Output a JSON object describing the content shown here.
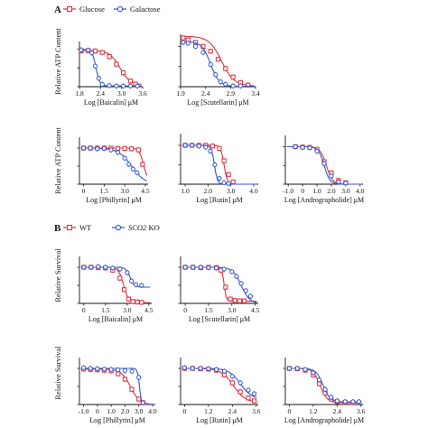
{
  "panels": [
    {
      "label": "A",
      "legend": [
        {
          "name": "Glucose",
          "color": "#e0303c",
          "marker": "square"
        },
        {
          "name": "Galactose",
          "color": "#3355cc",
          "marker": "circle"
        }
      ]
    },
    {
      "label": "B",
      "legend": [
        {
          "name": "WT",
          "color": "#e0303c",
          "marker": "square"
        },
        {
          "name": "SCO2 KO",
          "color": "#3355cc",
          "marker": "circle",
          "italic_part": "SCO2"
        }
      ]
    }
  ],
  "row_ylabels": {
    "A1": "Relative ATP Content",
    "A2": "Relative ATP Content",
    "B1": "Relative Survival",
    "B2": "Relative Survival"
  },
  "chart_data": [
    {
      "id": "A1a",
      "type": "scatter",
      "xlabel": "Log [Baicalin] μM",
      "xlim": [
        1.8,
        3.6
      ],
      "xticks": [
        "1.8",
        "2.4",
        "3.0",
        "3.6"
      ],
      "ylim": [
        0,
        1.2
      ],
      "series": [
        {
          "name": "Glucose",
          "color": "#e0303c",
          "marker": "square",
          "x": [
            1.85,
            2.05,
            2.25,
            2.45,
            2.65,
            2.85,
            3.05,
            3.25,
            3.4
          ],
          "y": [
            0.95,
            0.96,
            0.95,
            0.91,
            0.8,
            0.6,
            0.37,
            0.15,
            0.07
          ],
          "fit": {
            "top": 0.96,
            "bottom": 0.05,
            "ec50": 2.95,
            "hill": 3.0
          }
        },
        {
          "name": "Galactose",
          "color": "#3355cc",
          "marker": "circle",
          "x": [
            1.85,
            2.05,
            2.15,
            2.25,
            2.35,
            2.45,
            2.65,
            2.85,
            3.05,
            3.25,
            3.45
          ],
          "y": [
            0.98,
            0.97,
            0.9,
            0.55,
            0.22,
            0.06,
            0.03,
            0.02,
            0.02,
            0.02,
            0.02
          ],
          "fit": {
            "top": 0.99,
            "bottom": 0.02,
            "ec50": 2.27,
            "hill": 8.0
          }
        }
      ]
    },
    {
      "id": "A1b",
      "type": "scatter",
      "xlabel": "Log [Scutellarin] μM",
      "xlim": [
        1.9,
        3.4
      ],
      "xticks": [
        "1.9",
        "2.4",
        "2.9",
        "3.4"
      ],
      "ylim": [
        0,
        1.3
      ],
      "series": [
        {
          "name": "Glucose",
          "color": "#e0303c",
          "marker": "square",
          "x": [
            1.95,
            2.05,
            2.2,
            2.35,
            2.5,
            2.65,
            2.8,
            2.95,
            3.1,
            3.25
          ],
          "y": [
            1.21,
            1.16,
            1.1,
            1.0,
            0.88,
            0.68,
            0.45,
            0.24,
            0.1,
            0.04
          ],
          "fit": {
            "top": 1.25,
            "bottom": 0.02,
            "ec50": 2.72,
            "hill": 3.5
          }
        },
        {
          "name": "Galactose",
          "color": "#3355cc",
          "marker": "circle",
          "x": [
            1.95,
            2.05,
            2.2,
            2.35,
            2.5,
            2.6,
            2.7,
            2.8,
            2.95,
            3.1
          ],
          "y": [
            1.1,
            1.08,
            1.0,
            0.85,
            0.55,
            0.3,
            0.12,
            0.06,
            0.02,
            0.02
          ],
          "fit": {
            "top": 1.12,
            "bottom": 0.01,
            "ec50": 2.5,
            "hill": 5.0
          }
        }
      ]
    },
    {
      "id": "A2a",
      "type": "scatter",
      "xlabel": "Log [Phillyrin] μM",
      "xlim": [
        -0.3,
        4.7
      ],
      "xticks": [
        "0",
        "1.5",
        "3.0",
        "4.5"
      ],
      "ylim": [
        0,
        1.3
      ],
      "series": [
        {
          "name": "Glucose",
          "color": "#e0303c",
          "marker": "square",
          "x": [
            0.0,
            0.5,
            1.0,
            1.5,
            2.0,
            2.5,
            3.0,
            3.5,
            4.0,
            4.3
          ],
          "y": [
            1.0,
            1.0,
            1.0,
            1.0,
            1.0,
            0.99,
            0.99,
            0.98,
            0.95,
            0.55
          ],
          "fit": {
            "top": 1.0,
            "bottom": 0.0,
            "ec50": 4.4,
            "hill": 2.5
          }
        },
        {
          "name": "Galactose",
          "color": "#3355cc",
          "marker": "circle",
          "x": [
            0.0,
            0.5,
            1.0,
            1.5,
            2.0,
            2.5,
            3.0,
            3.3,
            3.6,
            3.9
          ],
          "y": [
            1.0,
            1.0,
            0.98,
            0.99,
            0.95,
            0.88,
            0.72,
            0.55,
            0.42,
            0.32
          ],
          "fit": {
            "top": 1.0,
            "bottom": 0.0,
            "ec50": 3.5,
            "hill": 0.9
          }
        }
      ]
    },
    {
      "id": "A2b",
      "type": "scatter",
      "xlabel": "Log [Rutin] μM",
      "xlim": [
        0.8,
        4.2
      ],
      "xticks": [
        "1.0",
        "2.0",
        "3.0",
        "4.0"
      ],
      "ylim": [
        0,
        1.3
      ],
      "series": [
        {
          "name": "Glucose",
          "color": "#e0303c",
          "marker": "square",
          "x": [
            1.0,
            1.3,
            1.6,
            1.9,
            2.2,
            2.5,
            2.7,
            2.9,
            3.1
          ],
          "y": [
            1.0,
            1.0,
            1.0,
            1.0,
            0.98,
            0.92,
            0.6,
            0.25,
            0.06
          ],
          "fit": {
            "top": 1.0,
            "bottom": 0.0,
            "ec50": 2.7,
            "hill": 6.0
          }
        },
        {
          "name": "Galactose",
          "color": "#3355cc",
          "marker": "circle",
          "x": [
            1.0,
            1.3,
            1.6,
            1.9,
            2.1,
            2.3,
            2.5,
            2.7,
            2.9
          ],
          "y": [
            1.0,
            1.0,
            0.98,
            0.95,
            0.85,
            0.5,
            0.15,
            0.04,
            0.02
          ],
          "fit": {
            "top": 1.0,
            "bottom": 0.0,
            "ec50": 2.28,
            "hill": 6.5
          }
        }
      ]
    },
    {
      "id": "A2c",
      "type": "scatter",
      "xlabel": "Log [Andrographolide] μM",
      "xlim": [
        -1.2,
        4.2
      ],
      "xticks": [
        "-1.0",
        "0",
        "1.0",
        "2.0",
        "3.0",
        "4.0"
      ],
      "ylim": [
        0,
        1.3
      ],
      "series": [
        {
          "name": "Glucose",
          "color": "#e0303c",
          "marker": "square",
          "x": [
            -0.5,
            0.0,
            0.5,
            1.0,
            1.5,
            2.0,
            2.5,
            3.0
          ],
          "y": [
            1.0,
            0.99,
            0.98,
            0.93,
            0.6,
            0.3,
            0.1,
            0.04
          ],
          "fit": {
            "top": 1.0,
            "bottom": 0.0,
            "ec50": 1.65,
            "hill": 2.0
          }
        },
        {
          "name": "Galactose",
          "color": "#3355cc",
          "marker": "circle",
          "x": [
            -0.5,
            0.0,
            0.5,
            1.0,
            1.5,
            2.0,
            2.5,
            3.0
          ],
          "y": [
            1.0,
            0.98,
            0.97,
            0.88,
            0.55,
            0.22,
            0.06,
            0.03
          ],
          "fit": {
            "top": 1.0,
            "bottom": 0.0,
            "ec50": 1.5,
            "hill": 2.2
          }
        }
      ]
    },
    {
      "id": "B1a",
      "type": "scatter",
      "xlabel": "Log [Baicalin] μM",
      "xlim": [
        -0.3,
        4.7
      ],
      "xticks": [
        "0",
        "1.5",
        "3.0",
        "4.5"
      ],
      "ylim": [
        0,
        1.3
      ],
      "series": [
        {
          "name": "WT",
          "color": "#e0303c",
          "marker": "square",
          "x": [
            0.0,
            0.5,
            1.0,
            1.5,
            2.0,
            2.5,
            2.8,
            3.1,
            3.4,
            3.7,
            4.0
          ],
          "y": [
            1.0,
            1.0,
            0.99,
            0.98,
            0.92,
            0.7,
            0.38,
            0.12,
            0.05,
            0.04,
            0.03
          ],
          "fit": {
            "top": 1.0,
            "bottom": 0.02,
            "ec50": 2.75,
            "hill": 2.5
          }
        },
        {
          "name": "SCO2 KO",
          "color": "#3355cc",
          "marker": "circle",
          "x": [
            0.0,
            0.5,
            1.0,
            1.5,
            2.0,
            2.5,
            3.0,
            3.3,
            3.6,
            4.0
          ],
          "y": [
            1.0,
            1.0,
            1.02,
            1.0,
            0.98,
            0.95,
            0.85,
            0.62,
            0.52,
            0.5
          ],
          "fit": {
            "top": 1.0,
            "bottom": 0.45,
            "ec50": 3.2,
            "hill": 3.0
          }
        }
      ]
    },
    {
      "id": "B1b",
      "type": "scatter",
      "xlabel": "Log [Scutellarin] μM",
      "xlim": [
        -0.3,
        4.7
      ],
      "xticks": [
        "0",
        "1.5",
        "3.0",
        "4.5"
      ],
      "ylim": [
        0,
        1.3
      ],
      "series": [
        {
          "name": "WT",
          "color": "#e0303c",
          "marker": "square",
          "x": [
            0.0,
            0.5,
            1.0,
            1.5,
            2.0,
            2.3,
            2.6,
            2.9,
            3.2,
            3.5,
            3.8
          ],
          "y": [
            1.0,
            1.0,
            0.99,
            1.0,
            0.99,
            0.92,
            0.45,
            0.12,
            0.08,
            0.07,
            0.07
          ],
          "fit": {
            "top": 1.0,
            "bottom": 0.06,
            "ec50": 2.5,
            "hill": 6.0
          }
        },
        {
          "name": "SCO2 KO",
          "color": "#3355cc",
          "marker": "circle",
          "x": [
            0.0,
            0.5,
            1.0,
            1.5,
            2.0,
            2.5,
            3.0,
            3.3,
            3.6,
            3.9,
            4.2
          ],
          "y": [
            1.0,
            1.0,
            1.0,
            0.99,
            0.98,
            0.95,
            0.88,
            0.75,
            0.55,
            0.35,
            0.2
          ],
          "fit": {
            "top": 1.0,
            "bottom": 0.0,
            "ec50": 3.6,
            "hill": 1.6
          }
        }
      ]
    },
    {
      "id": "B2a",
      "type": "scatter",
      "xlabel": "Log [Phillyrin] μM",
      "xlim": [
        -1.3,
        4.2
      ],
      "xticks": [
        "-1.0",
        "0",
        "1.0",
        "2.0",
        "3.0",
        "4.0"
      ],
      "ylim": [
        0,
        1.3
      ],
      "series": [
        {
          "name": "WT",
          "color": "#e0303c",
          "marker": "square",
          "x": [
            -1.0,
            -0.5,
            0.0,
            0.5,
            1.0,
            1.5,
            2.0,
            2.5,
            3.0,
            3.3
          ],
          "y": [
            0.98,
            0.97,
            0.96,
            0.95,
            0.93,
            0.85,
            0.7,
            0.42,
            0.15,
            0.05
          ],
          "fit": {
            "top": 0.98,
            "bottom": 0.0,
            "ec50": 2.4,
            "hill": 1.3
          }
        },
        {
          "name": "SCO2 KO",
          "color": "#3355cc",
          "marker": "circle",
          "x": [
            -1.0,
            -0.5,
            0.0,
            0.5,
            1.0,
            1.5,
            2.0,
            2.5,
            3.0,
            3.3
          ],
          "y": [
            1.02,
            1.0,
            0.99,
            0.98,
            0.97,
            0.96,
            0.94,
            0.92,
            0.75,
            0.05
          ],
          "fit": {
            "top": 1.0,
            "bottom": 0.0,
            "ec50": 3.05,
            "hill": 6.0
          }
        }
      ]
    },
    {
      "id": "B2b",
      "type": "scatter",
      "xlabel": "Log [Rutin] μM",
      "xlim": [
        -0.2,
        3.7
      ],
      "xticks": [
        "0",
        "1.2",
        "2.4",
        "3.6"
      ],
      "ylim": [
        0,
        1.3
      ],
      "series": [
        {
          "name": "WT",
          "color": "#e0303c",
          "marker": "square",
          "x": [
            0.0,
            0.4,
            0.8,
            1.2,
            1.6,
            2.0,
            2.4,
            2.8,
            3.2,
            3.5
          ],
          "y": [
            1.0,
            1.0,
            0.99,
            0.98,
            0.95,
            0.82,
            0.6,
            0.35,
            0.18,
            0.1
          ],
          "fit": {
            "top": 1.0,
            "bottom": 0.05,
            "ec50": 2.45,
            "hill": 1.4
          }
        },
        {
          "name": "SCO2 KO",
          "color": "#3355cc",
          "marker": "circle",
          "x": [
            0.0,
            0.4,
            0.8,
            1.2,
            1.6,
            2.0,
            2.4,
            2.8,
            3.2,
            3.5
          ],
          "y": [
            1.02,
            1.0,
            1.0,
            0.99,
            0.97,
            0.92,
            0.78,
            0.6,
            0.4,
            0.3
          ],
          "fit": {
            "top": 1.0,
            "bottom": 0.15,
            "ec50": 2.8,
            "hill": 1.5
          }
        }
      ]
    },
    {
      "id": "B2c",
      "type": "scatter",
      "xlabel": "Log [Andrographolide] μM",
      "xlim": [
        -0.2,
        3.7
      ],
      "xticks": [
        "0",
        "1.2",
        "2.4",
        "3.6"
      ],
      "ylim": [
        0,
        1.3
      ],
      "series": [
        {
          "name": "WT",
          "color": "#e0303c",
          "marker": "square",
          "x": [
            0.0,
            0.4,
            0.8,
            1.2,
            1.5,
            1.8,
            2.1,
            2.4,
            2.8,
            3.2
          ],
          "y": [
            1.0,
            0.99,
            0.95,
            0.82,
            0.58,
            0.32,
            0.15,
            0.08,
            0.06,
            0.05
          ],
          "fit": {
            "top": 1.0,
            "bottom": 0.05,
            "ec50": 1.55,
            "hill": 2.4
          }
        },
        {
          "name": "SCO2 KO",
          "color": "#3355cc",
          "marker": "circle",
          "x": [
            0.0,
            0.4,
            0.8,
            1.2,
            1.5,
            1.8,
            2.1,
            2.4,
            2.8,
            3.2,
            3.5
          ],
          "y": [
            1.0,
            1.0,
            0.97,
            0.88,
            0.68,
            0.42,
            0.2,
            0.1,
            0.08,
            0.08,
            0.08
          ],
          "fit": {
            "top": 1.0,
            "bottom": 0.07,
            "ec50": 1.7,
            "hill": 2.4
          }
        }
      ]
    }
  ]
}
